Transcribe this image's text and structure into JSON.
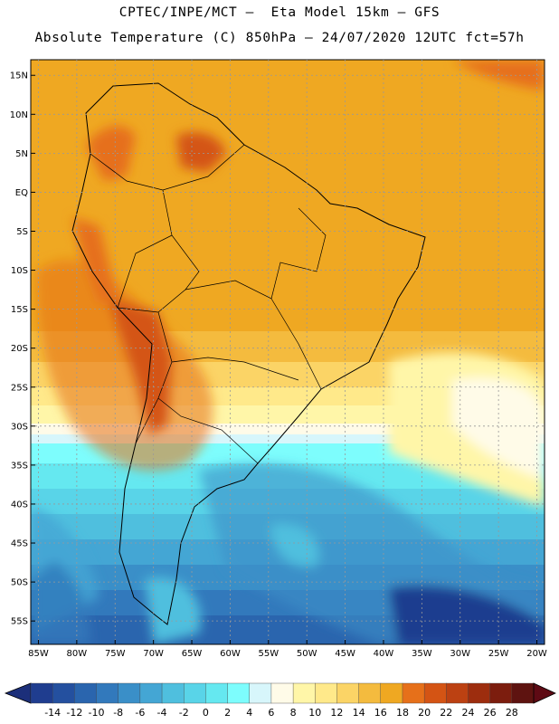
{
  "header": {
    "line1": "CPTEC/INPE/MCT –  Eta Model 15km – GFS",
    "line2": "Absolute Temperature (C) 850hPa – 24/07/2020 12UTC fct=57h"
  },
  "map": {
    "region": "South America",
    "lon_range": [
      -86,
      -19
    ],
    "lat_range": [
      17,
      -58
    ],
    "lat_ticks": [
      "15N",
      "10N",
      "5N",
      "EQ",
      "5S",
      "10S",
      "15S",
      "20S",
      "25S",
      "30S",
      "35S",
      "40S",
      "45S",
      "50S",
      "55S"
    ],
    "lat_values": [
      15,
      10,
      5,
      0,
      -5,
      -10,
      -15,
      -20,
      -25,
      -30,
      -35,
      -40,
      -45,
      -50,
      -55
    ],
    "lon_ticks": [
      "85W",
      "80W",
      "75W",
      "70W",
      "65W",
      "60W",
      "55W",
      "50W",
      "45W",
      "40W",
      "35W",
      "30W",
      "25W",
      "20W"
    ],
    "lon_values": [
      -85,
      -80,
      -75,
      -70,
      -65,
      -60,
      -55,
      -50,
      -45,
      -40,
      -35,
      -30,
      -25,
      -20
    ],
    "gridlines": true
  },
  "colorbar": {
    "labels": [
      "-14",
      "-12",
      "-10",
      "-8",
      "-6",
      "-4",
      "-2",
      "0",
      "2",
      "4",
      "6",
      "8",
      "10",
      "12",
      "14",
      "16",
      "18",
      "20",
      "22",
      "24",
      "26",
      "28"
    ],
    "colors": [
      "#1f3d8f",
      "#24509f",
      "#2a65ae",
      "#3279bc",
      "#3a8fc8",
      "#44a6d4",
      "#4fbfde",
      "#59d4e8",
      "#65e8f0",
      "#7dfdfd",
      "#d7f6fb",
      "#fffbe8",
      "#fff6a8",
      "#ffe98a",
      "#fbd466",
      "#f4bb3e",
      "#efa822",
      "#e6701a",
      "#d45414",
      "#bc4112",
      "#9d2d0e",
      "#7c1d0e",
      "#5e1310"
    ],
    "under_color": "#1c2f7a",
    "over_color": "#5e0a14"
  }
}
